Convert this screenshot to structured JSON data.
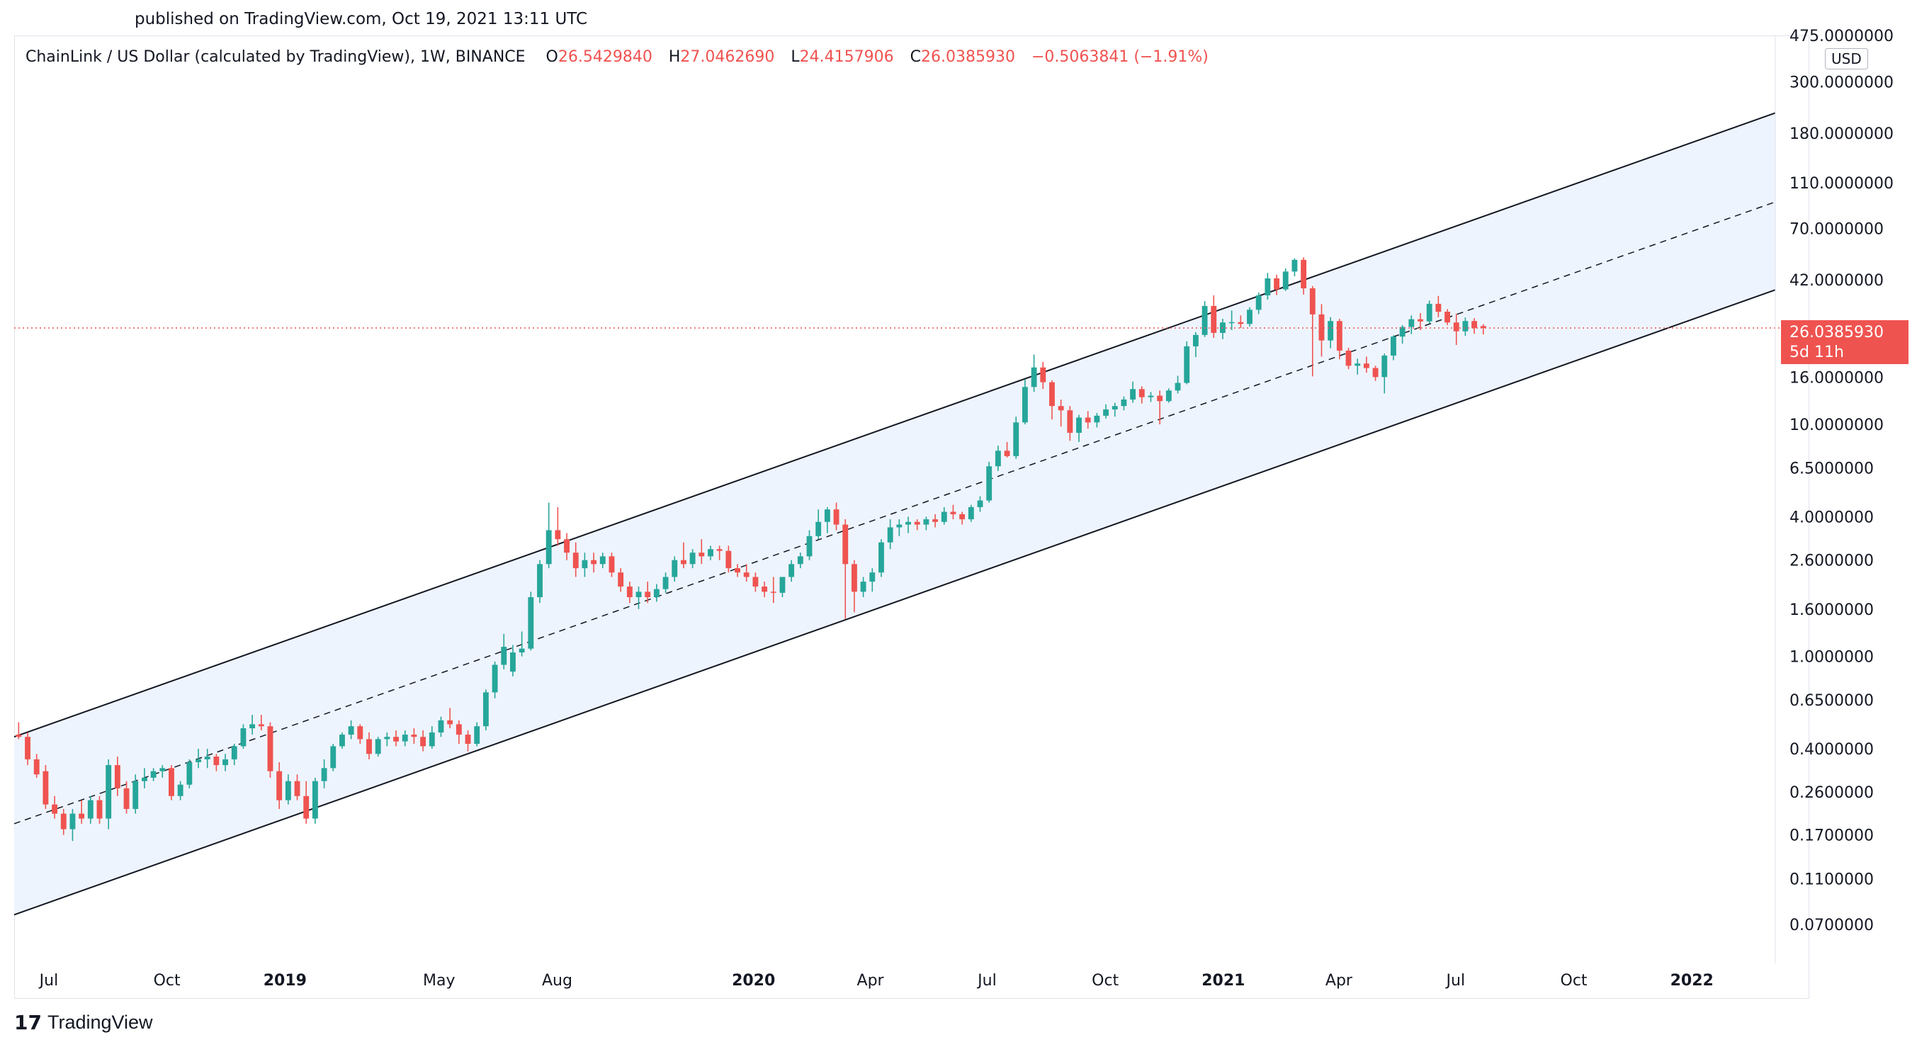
{
  "header": {
    "published": "published on TradingView.com, Oct 19, 2021 13:11 UTC"
  },
  "legend": {
    "symbol": "ChainLink / US Dollar (calculated by TradingView), 1W, BINANCE",
    "open_label": "O",
    "open": "26.5429840",
    "high_label": "H",
    "high": "27.0462690",
    "low_label": "L",
    "low": "24.4157906",
    "close_label": "C",
    "close": "26.0385930",
    "change": "−0.5063841 (−1.91%)"
  },
  "price_scale": {
    "currency": "USD",
    "last_price": "26.0385930",
    "countdown": "5d 11h"
  },
  "brand": {
    "logo_text": "TradingView"
  },
  "colors": {
    "up": "#26a69a",
    "down": "#ef5350",
    "channel_fill": "#eef4fd",
    "channel_line": "#131722",
    "price_line": "#ef5350"
  },
  "chart_data": {
    "type": "candlestick",
    "title": "ChainLink / US Dollar (calculated by TradingView), 1W, BINANCE",
    "y_scale": "log",
    "ylim": [
      0.0475,
      475
    ],
    "xlim": [
      "2018-06-04",
      "2022-03-07"
    ],
    "y_ticks": [
      "475.0000000",
      "300.0000000",
      "180.0000000",
      "110.0000000",
      "70.0000000",
      "42.0000000",
      "16.0000000",
      "10.0000000",
      "6.5000000",
      "4.0000000",
      "2.6000000",
      "1.6000000",
      "1.0000000",
      "0.6500000",
      "0.4000000",
      "0.2600000",
      "0.1700000",
      "0.1100000",
      "0.0700000"
    ],
    "x_ticks": [
      {
        "label": "Jul",
        "date": "2018-07-01",
        "bold": false
      },
      {
        "label": "Oct",
        "date": "2018-10-01",
        "bold": false
      },
      {
        "label": "2019",
        "date": "2019-01-01",
        "bold": true
      },
      {
        "label": "May",
        "date": "2019-05-01",
        "bold": false
      },
      {
        "label": "Aug",
        "date": "2019-08-01",
        "bold": false
      },
      {
        "label": "2020",
        "date": "2020-01-01",
        "bold": true
      },
      {
        "label": "Apr",
        "date": "2020-04-01",
        "bold": false
      },
      {
        "label": "Jul",
        "date": "2020-07-01",
        "bold": false
      },
      {
        "label": "Oct",
        "date": "2020-10-01",
        "bold": false
      },
      {
        "label": "2021",
        "date": "2021-01-01",
        "bold": true
      },
      {
        "label": "Apr",
        "date": "2021-04-01",
        "bold": false
      },
      {
        "label": "Jul",
        "date": "2021-07-01",
        "bold": false
      },
      {
        "label": "Oct",
        "date": "2021-10-01",
        "bold": false
      },
      {
        "label": "2022",
        "date": "2022-01-01",
        "bold": true
      }
    ],
    "last_price": 26.038593,
    "channel": {
      "upper": [
        {
          "date": "2018-06-04",
          "price": 0.45
        },
        {
          "date": "2022-03-07",
          "price": 220
        }
      ],
      "middle": [
        {
          "date": "2018-06-04",
          "price": 0.19
        },
        {
          "date": "2022-03-07",
          "price": 91
        }
      ],
      "lower": [
        {
          "date": "2018-06-04",
          "price": 0.077
        },
        {
          "date": "2022-03-07",
          "price": 38
        }
      ]
    },
    "ohlc_start_date": "2018-06-04",
    "ohlc_interval": "1W",
    "ohlc": [
      [
        0.46,
        0.52,
        0.44,
        0.45
      ],
      [
        0.45,
        0.47,
        0.34,
        0.36
      ],
      [
        0.36,
        0.38,
        0.3,
        0.31
      ],
      [
        0.32,
        0.34,
        0.22,
        0.23
      ],
      [
        0.23,
        0.25,
        0.2,
        0.21
      ],
      [
        0.21,
        0.22,
        0.17,
        0.18
      ],
      [
        0.18,
        0.22,
        0.16,
        0.21
      ],
      [
        0.21,
        0.24,
        0.19,
        0.2
      ],
      [
        0.2,
        0.25,
        0.19,
        0.24
      ],
      [
        0.24,
        0.25,
        0.19,
        0.2
      ],
      [
        0.2,
        0.36,
        0.18,
        0.34
      ],
      [
        0.34,
        0.37,
        0.25,
        0.27
      ],
      [
        0.27,
        0.29,
        0.21,
        0.22
      ],
      [
        0.22,
        0.31,
        0.21,
        0.29
      ],
      [
        0.29,
        0.33,
        0.27,
        0.3
      ],
      [
        0.3,
        0.33,
        0.29,
        0.32
      ],
      [
        0.32,
        0.34,
        0.3,
        0.33
      ],
      [
        0.33,
        0.34,
        0.24,
        0.25
      ],
      [
        0.25,
        0.29,
        0.24,
        0.28
      ],
      [
        0.28,
        0.36,
        0.27,
        0.35
      ],
      [
        0.35,
        0.4,
        0.33,
        0.36
      ],
      [
        0.36,
        0.4,
        0.33,
        0.37
      ],
      [
        0.37,
        0.38,
        0.32,
        0.34
      ],
      [
        0.34,
        0.38,
        0.32,
        0.36
      ],
      [
        0.36,
        0.42,
        0.34,
        0.41
      ],
      [
        0.41,
        0.51,
        0.4,
        0.49
      ],
      [
        0.49,
        0.56,
        0.46,
        0.51
      ],
      [
        0.51,
        0.56,
        0.48,
        0.5
      ],
      [
        0.5,
        0.52,
        0.3,
        0.32
      ],
      [
        0.32,
        0.35,
        0.22,
        0.24
      ],
      [
        0.24,
        0.31,
        0.23,
        0.29
      ],
      [
        0.29,
        0.31,
        0.24,
        0.25
      ],
      [
        0.25,
        0.29,
        0.19,
        0.2
      ],
      [
        0.2,
        0.3,
        0.19,
        0.29
      ],
      [
        0.29,
        0.36,
        0.27,
        0.33
      ],
      [
        0.33,
        0.42,
        0.32,
        0.41
      ],
      [
        0.41,
        0.47,
        0.4,
        0.46
      ],
      [
        0.46,
        0.53,
        0.44,
        0.5
      ],
      [
        0.5,
        0.51,
        0.42,
        0.44
      ],
      [
        0.44,
        0.47,
        0.36,
        0.38
      ],
      [
        0.38,
        0.45,
        0.37,
        0.44
      ],
      [
        0.44,
        0.47,
        0.41,
        0.45
      ],
      [
        0.45,
        0.48,
        0.41,
        0.43
      ],
      [
        0.43,
        0.48,
        0.41,
        0.46
      ],
      [
        0.46,
        0.49,
        0.42,
        0.45
      ],
      [
        0.45,
        0.48,
        0.39,
        0.41
      ],
      [
        0.41,
        0.5,
        0.4,
        0.47
      ],
      [
        0.47,
        0.55,
        0.45,
        0.53
      ],
      [
        0.53,
        0.6,
        0.49,
        0.51
      ],
      [
        0.51,
        0.53,
        0.42,
        0.46
      ],
      [
        0.46,
        0.48,
        0.39,
        0.42
      ],
      [
        0.42,
        0.52,
        0.41,
        0.5
      ],
      [
        0.5,
        0.72,
        0.48,
        0.7
      ],
      [
        0.7,
        0.95,
        0.66,
        0.92
      ],
      [
        0.92,
        1.25,
        0.88,
        1.1
      ],
      [
        0.86,
        1.12,
        0.82,
        1.04
      ],
      [
        1.04,
        1.28,
        1,
        1.08
      ],
      [
        1.08,
        1.9,
        1.06,
        1.8
      ],
      [
        1.8,
        2.6,
        1.7,
        2.5
      ],
      [
        2.5,
        4.6,
        2.4,
        3.5
      ],
      [
        3.5,
        4.4,
        3,
        3.2
      ],
      [
        3.2,
        3.4,
        2.6,
        2.8
      ],
      [
        2.8,
        3.1,
        2.2,
        2.4
      ],
      [
        2.4,
        2.8,
        2.2,
        2.6
      ],
      [
        2.6,
        2.8,
        2.3,
        2.5
      ],
      [
        2.5,
        2.8,
        2.4,
        2.7
      ],
      [
        2.7,
        2.8,
        2.2,
        2.3
      ],
      [
        2.3,
        2.4,
        1.9,
        2
      ],
      [
        2,
        2.1,
        1.7,
        1.8
      ],
      [
        1.8,
        2,
        1.6,
        1.9
      ],
      [
        1.9,
        2.1,
        1.7,
        1.8
      ],
      [
        1.8,
        2.05,
        1.72,
        1.95
      ],
      [
        1.95,
        2.3,
        1.88,
        2.2
      ],
      [
        2.2,
        2.7,
        2.1,
        2.6
      ],
      [
        2.6,
        3.1,
        2.4,
        2.5
      ],
      [
        2.5,
        2.9,
        2.4,
        2.8
      ],
      [
        2.8,
        3.2,
        2.5,
        2.7
      ],
      [
        2.7,
        3,
        2.6,
        2.9
      ],
      [
        2.9,
        3,
        2.6,
        2.85
      ],
      [
        2.85,
        3,
        2.3,
        2.4
      ],
      [
        2.4,
        2.5,
        2.2,
        2.3
      ],
      [
        2.3,
        2.5,
        2.1,
        2.2
      ],
      [
        2.2,
        2.3,
        1.9,
        2
      ],
      [
        2,
        2.1,
        1.8,
        1.9
      ],
      [
        1.9,
        2.2,
        1.7,
        1.88
      ],
      [
        1.88,
        2.2,
        1.8,
        2.2
      ],
      [
        2.2,
        2.6,
        2.1,
        2.5
      ],
      [
        2.5,
        2.8,
        2.4,
        2.7
      ],
      [
        2.7,
        3.5,
        2.6,
        3.3
      ],
      [
        3.3,
        4.3,
        3.2,
        3.8
      ],
      [
        3.8,
        4.4,
        3.4,
        4.3
      ],
      [
        4.3,
        4.6,
        3.5,
        3.7
      ],
      [
        3.7,
        3.9,
        1.45,
        2.5
      ],
      [
        2.5,
        2.6,
        1.55,
        1.9
      ],
      [
        1.9,
        2.2,
        1.8,
        2.1
      ],
      [
        2.1,
        2.4,
        1.9,
        2.3
      ],
      [
        2.3,
        3.2,
        2.2,
        3.1
      ],
      [
        3.1,
        3.9,
        2.9,
        3.6
      ],
      [
        3.6,
        3.9,
        3.3,
        3.7
      ],
      [
        3.7,
        4,
        3.4,
        3.8
      ],
      [
        3.8,
        3.9,
        3.5,
        3.7
      ],
      [
        3.7,
        4,
        3.5,
        3.9
      ],
      [
        3.9,
        4.1,
        3.6,
        3.8
      ],
      [
        3.8,
        4.4,
        3.7,
        4.2
      ],
      [
        4.2,
        4.5,
        3.9,
        4.1
      ],
      [
        4.1,
        4.2,
        3.7,
        3.9
      ],
      [
        3.9,
        4.5,
        3.8,
        4.4
      ],
      [
        4.4,
        4.9,
        4.2,
        4.7
      ],
      [
        4.7,
        6.9,
        4.6,
        6.6
      ],
      [
        6.6,
        8.1,
        6.3,
        7.7
      ],
      [
        7.7,
        8.4,
        7.2,
        7.3
      ],
      [
        7.3,
        10.8,
        7.1,
        10.2
      ],
      [
        10.2,
        15.6,
        10,
        14.5
      ],
      [
        14.5,
        20,
        13.8,
        17.6
      ],
      [
        17.6,
        18.6,
        14.2,
        15.2
      ],
      [
        15.2,
        15.5,
        10.5,
        12
      ],
      [
        12,
        12.8,
        9.8,
        11.5
      ],
      [
        11.5,
        12,
        8.5,
        9.2
      ],
      [
        9.2,
        11,
        8.4,
        10.7
      ],
      [
        10.7,
        11.4,
        9.6,
        10.2
      ],
      [
        10.2,
        11.2,
        9.7,
        10.9
      ],
      [
        10.9,
        12.2,
        10.6,
        11.6
      ],
      [
        11.6,
        12.4,
        10.8,
        12
      ],
      [
        12,
        13.2,
        11.5,
        12.8
      ],
      [
        12.8,
        15.3,
        12.4,
        14.2
      ],
      [
        14.2,
        14.6,
        12.3,
        13.1
      ],
      [
        13.1,
        13.8,
        12.5,
        13.3
      ],
      [
        13.3,
        14,
        10,
        12.6
      ],
      [
        12.6,
        14.3,
        12.4,
        14
      ],
      [
        14,
        16.2,
        13.6,
        15.1
      ],
      [
        15.1,
        22.8,
        14.9,
        21.7
      ],
      [
        21.7,
        25,
        19.5,
        24.3
      ],
      [
        24.3,
        34,
        23.8,
        32.4
      ],
      [
        32.4,
        36,
        23.6,
        24.8
      ],
      [
        24.8,
        28.5,
        23.3,
        27.5
      ],
      [
        27.5,
        31,
        25.5,
        27.6
      ],
      [
        27.6,
        29.5,
        26,
        27.1
      ],
      [
        27.1,
        32,
        26.4,
        31.2
      ],
      [
        31.2,
        37,
        29.9,
        36
      ],
      [
        36,
        45,
        34.5,
        42.6
      ],
      [
        42.6,
        44.2,
        36.1,
        38.2
      ],
      [
        38.2,
        47,
        37.6,
        45.6
      ],
      [
        45.6,
        52,
        43.5,
        51.2
      ],
      [
        51.2,
        52.5,
        36.3,
        38.6
      ],
      [
        38.6,
        39.5,
        16.1,
        29.8
      ],
      [
        29.8,
        33,
        19.6,
        23
      ],
      [
        23,
        29,
        21.3,
        27.9
      ],
      [
        27.9,
        28.5,
        19.1,
        20.8
      ],
      [
        20.8,
        21.4,
        17.3,
        17.9
      ],
      [
        17.9,
        19.2,
        16.4,
        18.3
      ],
      [
        18.3,
        19.6,
        16.7,
        17.5
      ],
      [
        17.5,
        17.9,
        15.4,
        16
      ],
      [
        16,
        20.2,
        13.6,
        19.8
      ],
      [
        19.8,
        24.2,
        18.9,
        23.9
      ],
      [
        23.9,
        26.8,
        22.3,
        26.3
      ],
      [
        26.3,
        29.5,
        24.5,
        28.4
      ],
      [
        28.4,
        30.2,
        25.5,
        27.8
      ],
      [
        27.8,
        34.2,
        27.1,
        33.1
      ],
      [
        33.1,
        35.8,
        29,
        30.6
      ],
      [
        30.6,
        31.4,
        26.8,
        27.5
      ],
      [
        27.5,
        30,
        22,
        25.2
      ],
      [
        25.2,
        28.9,
        24.1,
        27.9
      ],
      [
        27.9,
        28.7,
        24.6,
        26
      ],
      [
        26.542984,
        27.046269,
        24.4157906,
        26.038593
      ]
    ]
  }
}
